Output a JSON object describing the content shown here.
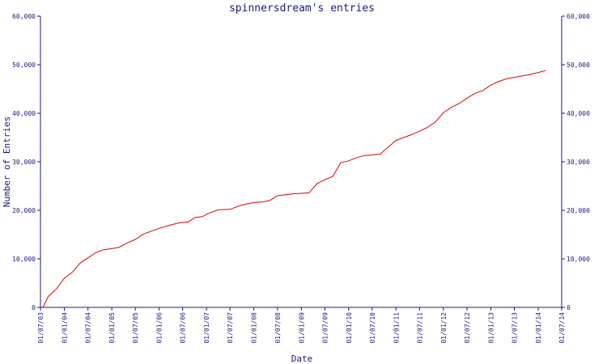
{
  "chart_data": {
    "type": "line",
    "title": "spinnersdream's entries",
    "xlabel": "Date",
    "ylabel": "Number of Entries",
    "xlim": [
      "2003-07-01",
      "2014-07-01"
    ],
    "ylim": [
      0,
      60000
    ],
    "x_ticks": [
      "01/07/03",
      "01/01/04",
      "01/07/04",
      "01/01/05",
      "01/07/05",
      "01/01/06",
      "01/07/06",
      "01/01/07",
      "01/07/07",
      "01/01/08",
      "01/07/08",
      "01/01/09",
      "01/07/09",
      "01/01/10",
      "01/07/10",
      "01/01/11",
      "01/07/11",
      "01/01/12",
      "01/07/12",
      "01/01/13",
      "01/07/13",
      "01/01/14",
      "01/07/14"
    ],
    "x_tick_dates": [
      "2003-07-01",
      "2004-01-01",
      "2004-07-01",
      "2005-01-01",
      "2005-07-01",
      "2006-01-01",
      "2006-07-01",
      "2007-01-01",
      "2007-07-01",
      "2008-01-01",
      "2008-07-01",
      "2009-01-01",
      "2009-07-01",
      "2010-01-01",
      "2010-07-01",
      "2011-01-01",
      "2011-07-01",
      "2012-01-01",
      "2012-07-01",
      "2013-01-01",
      "2013-07-01",
      "2014-01-01",
      "2014-07-01"
    ],
    "y_ticks": [
      0,
      10000,
      20000,
      30000,
      40000,
      50000,
      60000
    ],
    "y_tick_labels": [
      "0",
      "10,000",
      "20,000",
      "30,000",
      "40,000",
      "50,000",
      "60,000"
    ],
    "grid": false,
    "series": [
      {
        "color": "#e00000",
        "points": [
          [
            "2003-07-20",
            0
          ],
          [
            "2003-09-01",
            2300
          ],
          [
            "2003-11-01",
            3800
          ],
          [
            "2004-01-01",
            6000
          ],
          [
            "2004-03-01",
            7200
          ],
          [
            "2004-05-01",
            9100
          ],
          [
            "2004-07-01",
            10200
          ],
          [
            "2004-09-01",
            11300
          ],
          [
            "2004-11-01",
            11900
          ],
          [
            "2005-01-01",
            12100
          ],
          [
            "2005-03-01",
            12400
          ],
          [
            "2005-05-01",
            13300
          ],
          [
            "2005-07-01",
            14000
          ],
          [
            "2005-09-01",
            15100
          ],
          [
            "2005-11-01",
            15700
          ],
          [
            "2006-01-01",
            16300
          ],
          [
            "2006-04-01",
            17000
          ],
          [
            "2006-06-01",
            17400
          ],
          [
            "2006-08-15",
            17600
          ],
          [
            "2006-10-01",
            18500
          ],
          [
            "2006-12-01",
            18700
          ],
          [
            "2007-01-01",
            19200
          ],
          [
            "2007-04-01",
            20100
          ],
          [
            "2007-07-01",
            20200
          ],
          [
            "2007-10-01",
            21100
          ],
          [
            "2008-01-01",
            21600
          ],
          [
            "2008-03-01",
            21700
          ],
          [
            "2008-05-01",
            22000
          ],
          [
            "2008-07-01",
            23000
          ],
          [
            "2008-09-01",
            23200
          ],
          [
            "2008-11-01",
            23400
          ],
          [
            "2009-01-01",
            23500
          ],
          [
            "2009-03-01",
            23600
          ],
          [
            "2009-05-01",
            25500
          ],
          [
            "2009-07-01",
            26300
          ],
          [
            "2009-09-01",
            27000
          ],
          [
            "2009-11-01",
            29800
          ],
          [
            "2010-01-01",
            30200
          ],
          [
            "2010-03-01",
            30800
          ],
          [
            "2010-05-01",
            31300
          ],
          [
            "2010-07-01",
            31400
          ],
          [
            "2010-09-01",
            31600
          ],
          [
            "2010-11-01",
            33000
          ],
          [
            "2011-01-01",
            34400
          ],
          [
            "2011-03-01",
            35000
          ],
          [
            "2011-05-01",
            35600
          ],
          [
            "2011-07-01",
            36300
          ],
          [
            "2011-09-01",
            37100
          ],
          [
            "2011-11-01",
            38200
          ],
          [
            "2012-01-01",
            40100
          ],
          [
            "2012-03-01",
            41200
          ],
          [
            "2012-05-01",
            42000
          ],
          [
            "2012-07-01",
            43100
          ],
          [
            "2012-09-01",
            44100
          ],
          [
            "2012-11-01",
            44700
          ],
          [
            "2013-01-01",
            45800
          ],
          [
            "2013-03-01",
            46500
          ],
          [
            "2013-05-01",
            47100
          ],
          [
            "2013-07-01",
            47400
          ],
          [
            "2013-09-01",
            47700
          ],
          [
            "2013-11-01",
            48000
          ],
          [
            "2014-01-01",
            48400
          ],
          [
            "2014-03-01",
            48800
          ]
        ]
      }
    ]
  }
}
